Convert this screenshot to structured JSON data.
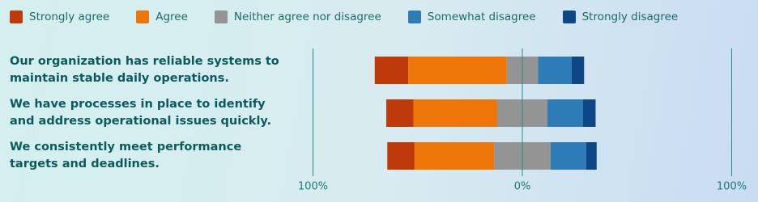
{
  "chart_data": {
    "type": "diverging-bar",
    "categories": [
      "Our organization has reliable systems to maintain stable daily operations.",
      "We have processes in place to identify and address operational issues quickly.",
      "We consistently meet performance targets and deadlines."
    ],
    "series": [
      {
        "name": "Strongly agree",
        "color": "#bf3a0b",
        "values": [
          16,
          13,
          13
        ]
      },
      {
        "name": "Agree",
        "color": "#ee7609",
        "values": [
          47,
          40,
          38
        ]
      },
      {
        "name": "Neither agree nor disagree",
        "color": "#949494",
        "values": [
          15,
          24,
          27
        ]
      },
      {
        "name": "Somewhat disagree",
        "color": "#2d7bb7",
        "values": [
          16,
          17,
          17
        ]
      },
      {
        "name": "Strongly disagree",
        "color": "#0d4785",
        "values": [
          6,
          6,
          5
        ]
      }
    ],
    "xlim": [
      -100,
      100
    ],
    "xticks": [
      {
        "value": -100,
        "label": "100%"
      },
      {
        "value": 0,
        "label": "0%"
      },
      {
        "value": 100,
        "label": "100%"
      }
    ]
  }
}
